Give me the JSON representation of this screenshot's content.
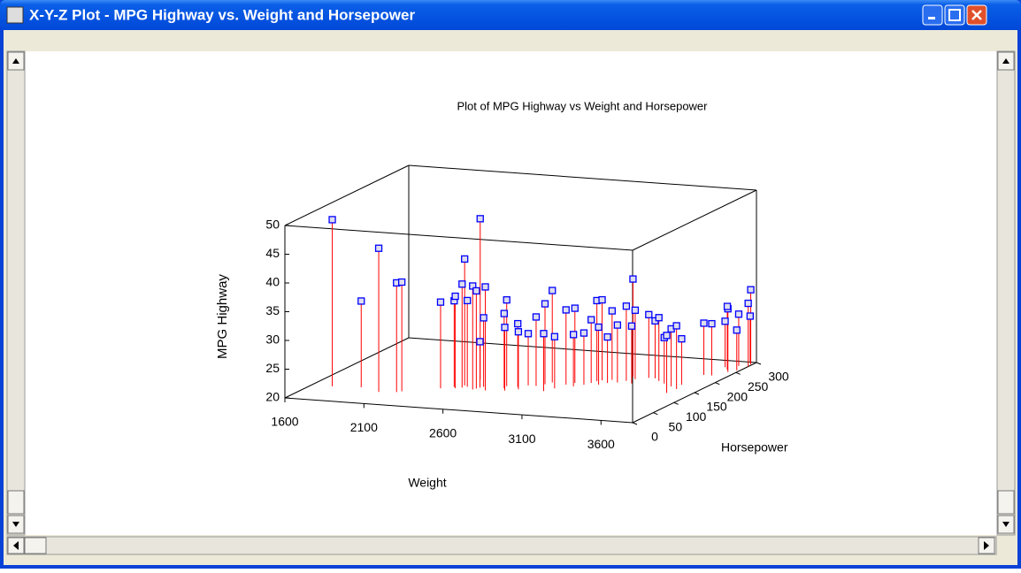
{
  "window": {
    "title": "X-Y-Z Plot - MPG Highway vs. Weight and Horsepower"
  },
  "chart_data": {
    "type": "scatter3d",
    "title": "Plot of MPG Highway vs Weight and Horsepower",
    "x_label": "Weight",
    "y_label": "Horsepower",
    "z_label": "MPG Highway",
    "xlim": [
      1600,
      3800
    ],
    "ylim": [
      0,
      300
    ],
    "zlim": [
      20,
      50
    ],
    "xticks": [
      1600,
      2100,
      2600,
      3100,
      3600
    ],
    "yticks": [
      0,
      50,
      100,
      150,
      200,
      250,
      300
    ],
    "zticks": [
      20,
      25,
      30,
      35,
      40,
      45,
      50
    ],
    "marker_color": "#0000ff",
    "stem_color": "#ff0000",
    "x": [
      1730,
      1900,
      2050,
      2150,
      2170,
      2350,
      2410,
      2430,
      2450,
      2460,
      2480,
      2470,
      2540,
      2550,
      2560,
      2570,
      2620,
      2690,
      2700,
      2730,
      2760,
      2790,
      2800,
      2850,
      2880,
      2900,
      2950,
      2980,
      3000,
      3030,
      3060,
      3100,
      3120,
      3130,
      3150,
      3180,
      3200,
      3210,
      3260,
      3280,
      3290,
      3320,
      3350,
      3380,
      3420,
      3470,
      3530,
      3600,
      3650,
      3660,
      3640,
      3650,
      3700,
      3750,
      3720,
      3680,
      3780,
      3800,
      3790,
      3760,
      3740
    ],
    "y": [
      65,
      70,
      55,
      60,
      65,
      90,
      100,
      95,
      110,
      100,
      105,
      140,
      95,
      100,
      105,
      110,
      95,
      120,
      110,
      100,
      120,
      110,
      130,
      130,
      140,
      150,
      110,
      125,
      145,
      155,
      140,
      150,
      160,
      170,
      175,
      155,
      180,
      165,
      170,
      200,
      180,
      190,
      170,
      200,
      200,
      190,
      180,
      170,
      140,
      160,
      180,
      230,
      230,
      250,
      260,
      270,
      260,
      280,
      290,
      300,
      280
    ],
    "z": [
      49,
      35,
      45,
      39,
      39,
      35,
      35,
      36,
      42,
      38,
      35,
      48,
      38,
      37,
      28,
      32,
      38,
      35,
      33,
      31,
      31,
      30,
      29,
      32,
      34,
      36,
      30,
      29,
      33,
      33,
      29,
      29,
      31,
      34,
      34,
      30,
      32,
      28,
      30,
      37,
      33,
      32,
      30,
      31,
      30,
      31,
      28,
      30,
      30,
      31,
      28,
      29,
      29,
      31,
      31,
      28,
      27,
      31,
      33,
      28,
      29
    ]
  }
}
